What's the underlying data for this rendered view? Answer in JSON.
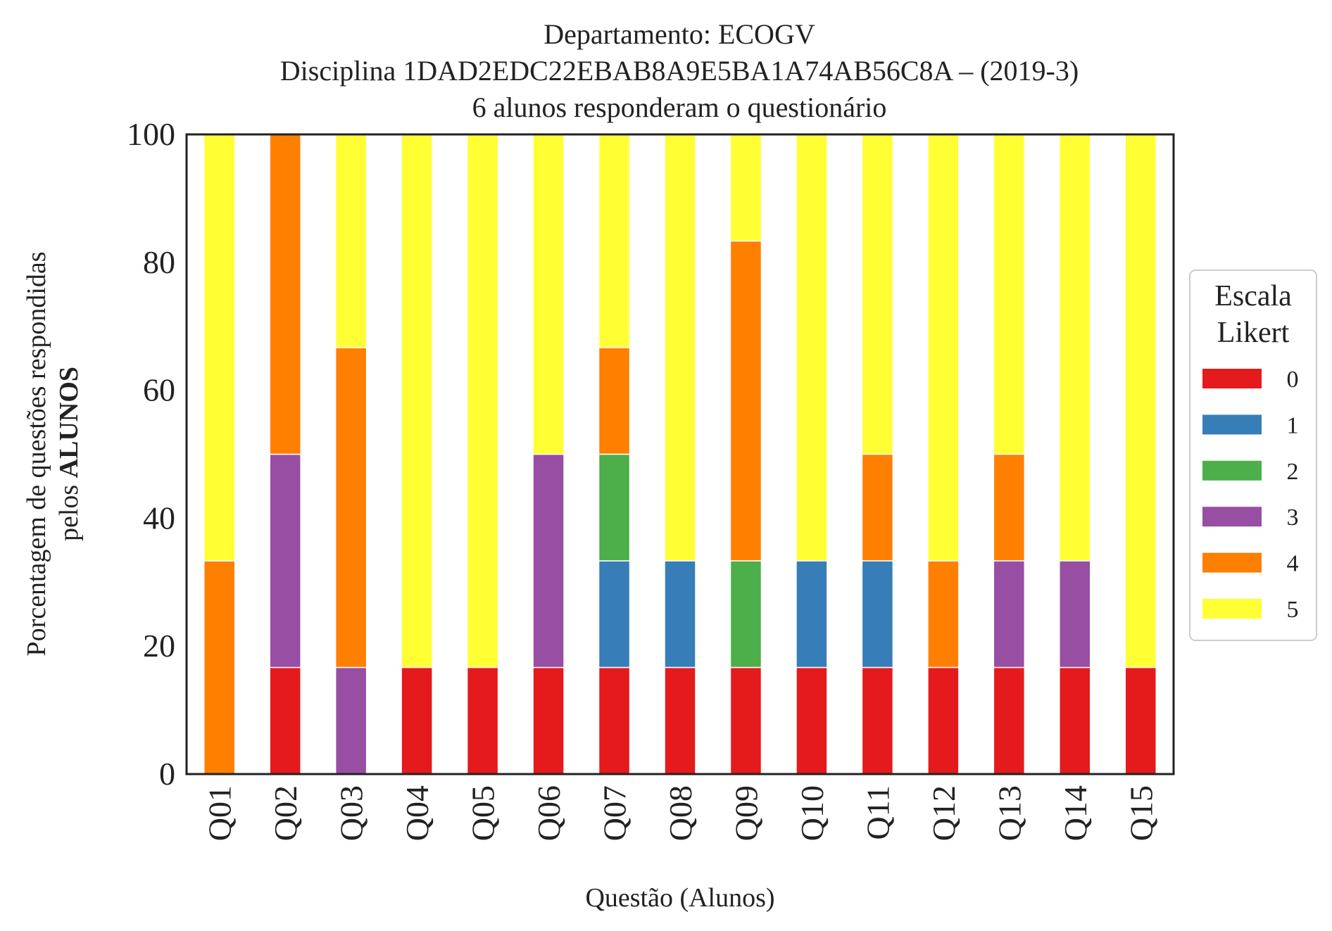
{
  "chart_data": {
    "type": "bar",
    "stacked": true,
    "title_lines": [
      "Departamento: ECOGV",
      "Disciplina 1DAD2EDC22EBAB8A9E5BA1A74AB56C8A – (2019-3)",
      "6 alunos responderam o questionário"
    ],
    "xlabel": "Questão (Alunos)",
    "ylabel_line1": "Porcentagem de questões respondidas",
    "ylabel_line2_prefix": "pelos ",
    "ylabel_line2_bold": "ALUNOS",
    "ylim": [
      0,
      100
    ],
    "yticks": [
      "0",
      "20",
      "40",
      "60",
      "80",
      "100"
    ],
    "categories": [
      "Q01",
      "Q02",
      "Q03",
      "Q04",
      "Q05",
      "Q06",
      "Q07",
      "Q08",
      "Q09",
      "Q10",
      "Q11",
      "Q12",
      "Q13",
      "Q14",
      "Q15"
    ],
    "legend": {
      "title_lines": [
        "Escala",
        "Likert"
      ],
      "placement": "right"
    },
    "series": [
      {
        "name": "0",
        "color": "#e41a1c",
        "values": [
          0,
          16.67,
          0,
          16.67,
          16.67,
          16.67,
          16.67,
          16.67,
          16.67,
          16.67,
          16.67,
          16.67,
          16.67,
          16.67,
          16.67
        ]
      },
      {
        "name": "1",
        "color": "#377eb8",
        "values": [
          0,
          0,
          0,
          0,
          0,
          0,
          16.67,
          16.67,
          0,
          16.67,
          16.67,
          0,
          0,
          0,
          0
        ]
      },
      {
        "name": "2",
        "color": "#4daf4a",
        "values": [
          0,
          0,
          0,
          0,
          0,
          0,
          16.67,
          0,
          16.67,
          0,
          0,
          0,
          0,
          0,
          0
        ]
      },
      {
        "name": "3",
        "color": "#984ea3",
        "values": [
          0,
          33.33,
          16.67,
          0,
          0,
          33.33,
          0,
          0,
          0,
          0,
          0,
          0,
          16.67,
          16.67,
          0
        ]
      },
      {
        "name": "4",
        "color": "#ff7f00",
        "values": [
          33.33,
          50,
          50,
          0,
          0,
          0,
          16.67,
          0,
          50,
          0,
          16.67,
          16.67,
          16.67,
          0,
          0
        ]
      },
      {
        "name": "5",
        "color": "#ffff33",
        "values": [
          66.67,
          0,
          33.33,
          83.33,
          83.33,
          50,
          33.33,
          66.67,
          16.67,
          66.67,
          50,
          66.67,
          50,
          66.67,
          83.33
        ]
      }
    ]
  }
}
